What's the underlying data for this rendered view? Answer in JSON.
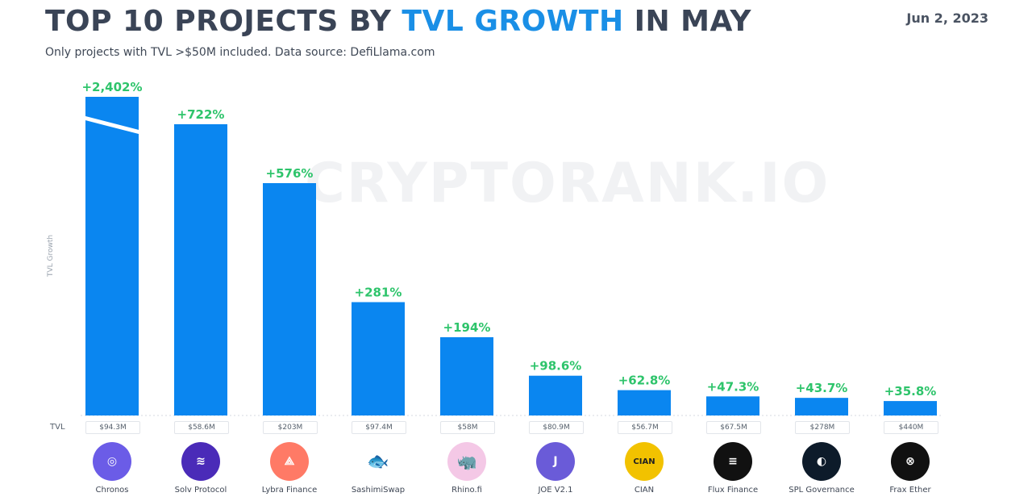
{
  "header": {
    "title_part1": "TOP 10 PROJECTS BY ",
    "title_highlight": "TVL GROWTH",
    "title_part2": " IN MAY",
    "subtitle": "Only projects with TVL >$50M included. Data source: DefiLlama.com",
    "date": "Jun 2, 2023",
    "watermark": "CRYPTORANK.IO"
  },
  "axis": {
    "ylabel": "TVL Growth",
    "tvl_row_label": "TVL"
  },
  "colors": {
    "bar": "#0a86f0",
    "growth_label": "#2ec46b",
    "title_highlight": "#1a8fe6"
  },
  "chart_data": {
    "type": "bar",
    "title": "TOP 10 PROJECTS BY TVL GROWTH IN MAY",
    "xlabel": "",
    "ylabel": "TVL Growth",
    "categories": [
      "Chronos",
      "Solv Protocol",
      "Lybra Finance",
      "SashimiSwap",
      "Rhino.fi",
      "JOE V2.1",
      "CIAN",
      "Flux Finance",
      "SPL Governance",
      "Frax Ether"
    ],
    "values": [
      2402,
      722,
      576,
      281,
      194,
      98.6,
      62.8,
      47.3,
      43.7,
      35.8
    ],
    "value_labels": [
      "+2,402%",
      "+722%",
      "+576%",
      "+281%",
      "+194%",
      "+98.6%",
      "+62.8%",
      "+47.3%",
      "+43.7%",
      "+35.8%"
    ],
    "tvl": [
      "$94.3M",
      "$58.6M",
      "$203M",
      "$97.4M",
      "$58M",
      "$80.9M",
      "$56.7M",
      "$67.5M",
      "$278M",
      "$440M"
    ],
    "broken_axis_bar": "Chronos",
    "ylim": [
      0,
      790
    ]
  },
  "logos": [
    {
      "icon": "chronos-icon",
      "color": "#6b5ce7",
      "glyph": "◎"
    },
    {
      "icon": "solv-icon",
      "color": "#4a2bb8",
      "glyph": "≋"
    },
    {
      "icon": "lybra-icon",
      "color": "#ff7a66",
      "glyph": "⟁"
    },
    {
      "icon": "sashimi-icon",
      "color": "#ffffff",
      "glyph": "🐟"
    },
    {
      "icon": "rhino-icon",
      "color": "#f4c8e6",
      "glyph": "🦏"
    },
    {
      "icon": "joe-icon",
      "color": "#6a5bd8",
      "glyph": "J"
    },
    {
      "icon": "cian-icon",
      "color": "#f2c200",
      "glyph": "CIAN"
    },
    {
      "icon": "flux-icon",
      "color": "#111111",
      "glyph": "≡"
    },
    {
      "icon": "spl-icon",
      "color": "#0d1b2a",
      "glyph": "◐"
    },
    {
      "icon": "frax-icon",
      "color": "#111111",
      "glyph": "⊗"
    }
  ]
}
